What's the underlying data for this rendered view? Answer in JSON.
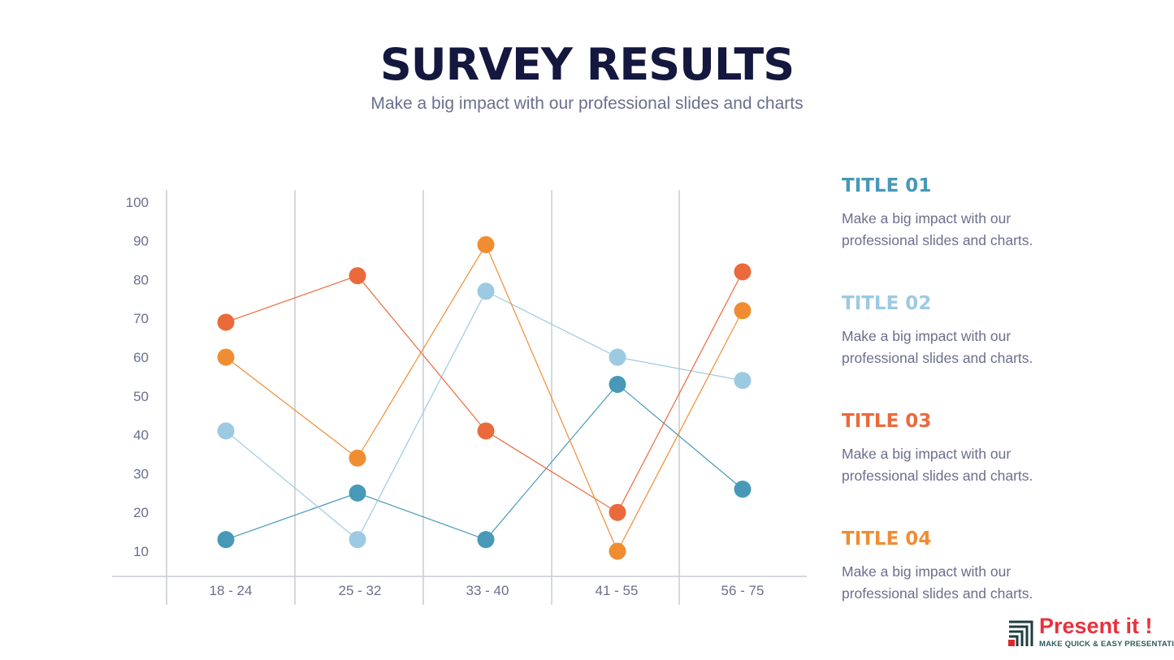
{
  "header": {
    "title": "SURVEY RESULTS",
    "subtitle": "Make a big impact with our professional slides and charts"
  },
  "chart_data": {
    "type": "line",
    "categories": [
      "18 - 24",
      "25 - 32",
      "33 - 40",
      "41 - 55",
      "56 - 75"
    ],
    "y_ticks": [
      "10",
      "20",
      "30",
      "40",
      "50",
      "60",
      "70",
      "80",
      "90",
      "100"
    ],
    "ylim": [
      10,
      100
    ],
    "grid": "vertical",
    "legend_placement": "right",
    "series": [
      {
        "name": "TITLE 01",
        "color": "#4799b7",
        "values": [
          13,
          25,
          13,
          53,
          26
        ]
      },
      {
        "name": "TITLE 02",
        "color": "#9ccae3",
        "values": [
          41,
          13,
          77,
          60,
          54
        ]
      },
      {
        "name": "TITLE 03",
        "color": "#eb6a3c",
        "values": [
          69,
          81,
          41,
          20,
          82
        ]
      },
      {
        "name": "TITLE 04",
        "color": "#f08d33",
        "values": [
          60,
          34,
          89,
          10,
          72
        ]
      }
    ]
  },
  "legend": [
    {
      "title": "TITLE 01",
      "text1": "Make a big impact with our",
      "text2": "professional slides and charts.",
      "color": "#4799b7"
    },
    {
      "title": "TITLE 02",
      "text1": "Make a big impact with our",
      "text2": "professional slides and charts.",
      "color": "#9ccae3"
    },
    {
      "title": "TITLE 03",
      "text1": "Make a big impact with our",
      "text2": "professional slides and charts.",
      "color": "#eb6a3c"
    },
    {
      "title": "TITLE 04",
      "text1": "Make a big impact with our",
      "text2": "professional slides and charts.",
      "color": "#f08d33"
    }
  ],
  "logo": {
    "name": "Present it !",
    "tagline": "MAKE QUICK & EASY PRESENTATIONS"
  }
}
